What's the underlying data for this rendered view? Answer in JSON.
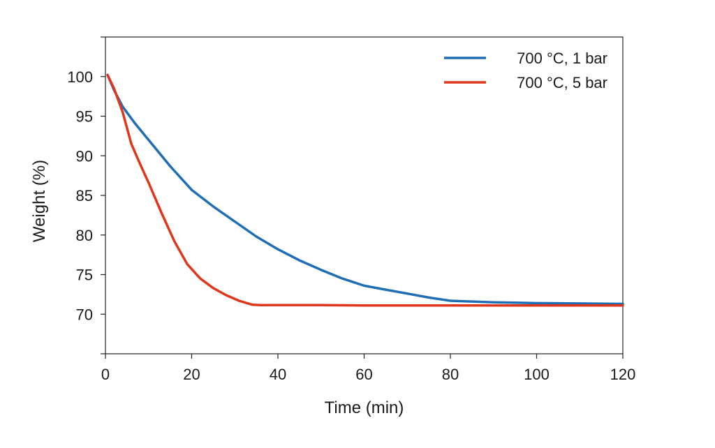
{
  "chart_data": {
    "type": "line",
    "xlabel": "Time (min)",
    "ylabel": "Weight (%)",
    "xlim": [
      0,
      120
    ],
    "ylim": [
      65,
      105
    ],
    "xticks": [
      0,
      20,
      40,
      60,
      80,
      100,
      120
    ],
    "yticks": [
      70,
      75,
      80,
      85,
      90,
      95,
      100
    ],
    "grid": false,
    "legend_position": "top-right",
    "series": [
      {
        "name": "700 °C, 1 bar",
        "color": "#1f6db5",
        "x": [
          0.5,
          2,
          4,
          7,
          10,
          15,
          20,
          25,
          30,
          35,
          40,
          45,
          50,
          55,
          60,
          65,
          70,
          75,
          80,
          85,
          90,
          95,
          100,
          110,
          120
        ],
        "y": [
          100.2,
          98.3,
          96.2,
          94.0,
          92.0,
          88.7,
          85.7,
          83.6,
          81.7,
          79.8,
          78.2,
          76.8,
          75.6,
          74.5,
          73.6,
          73.1,
          72.6,
          72.1,
          71.7,
          71.6,
          71.5,
          71.45,
          71.4,
          71.35,
          71.3
        ]
      },
      {
        "name": "700 °C, 5 bar",
        "color": "#e0361c",
        "x": [
          0.5,
          2,
          4,
          6,
          8,
          10,
          13,
          16,
          19,
          22,
          25,
          28,
          31,
          34,
          36,
          40,
          50,
          60,
          80,
          100,
          120
        ],
        "y": [
          100.2,
          98.5,
          95.5,
          91.5,
          89.0,
          86.6,
          82.8,
          79.2,
          76.3,
          74.5,
          73.3,
          72.4,
          71.7,
          71.2,
          71.15,
          71.15,
          71.15,
          71.1,
          71.1,
          71.1,
          71.1
        ]
      }
    ]
  }
}
